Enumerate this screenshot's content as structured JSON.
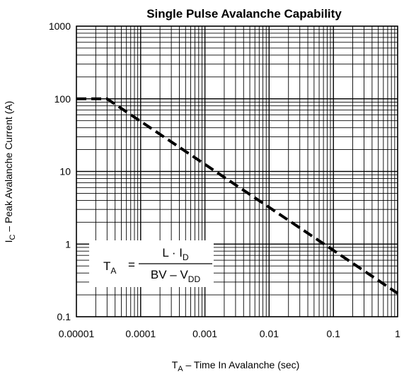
{
  "chart_data": {
    "type": "line",
    "title": "Single Pulse Avalanche Capability",
    "xlabel": {
      "main": "T",
      "sub": "A",
      "rest": " – Time In Avalanche (sec)"
    },
    "ylabel": {
      "main": "I",
      "sub": "C",
      "rest": " – Peak Avalanche Current (A)"
    },
    "x_scale": "log",
    "y_scale": "log",
    "xlim": [
      1e-05,
      1
    ],
    "ylim": [
      0.1,
      1000
    ],
    "grid": true,
    "x_ticks": [
      {
        "value": 1e-05,
        "label": "0.00001"
      },
      {
        "value": 0.0001,
        "label": "0.0001"
      },
      {
        "value": 0.001,
        "label": "0.001"
      },
      {
        "value": 0.01,
        "label": "0.01"
      },
      {
        "value": 0.1,
        "label": "0.1"
      },
      {
        "value": 1,
        "label": "1"
      }
    ],
    "y_ticks": [
      {
        "value": 0.1,
        "label": "0.1"
      },
      {
        "value": 1,
        "label": "1"
      },
      {
        "value": 10,
        "label": "10"
      },
      {
        "value": 100,
        "label": "100"
      },
      {
        "value": 1000,
        "label": "1000"
      }
    ],
    "series": [
      {
        "style": "dashed",
        "color": "#000000",
        "points": [
          {
            "x": 1e-05,
            "y": 100
          },
          {
            "x": 3e-05,
            "y": 100
          },
          {
            "x": 1,
            "y": 0.21
          }
        ]
      }
    ],
    "annotation": {
      "lhs_main": "T",
      "lhs_sub": "A",
      "equals": "=",
      "numerator_main": "L · I",
      "numerator_sub": "D",
      "denominator_main": "BV – V",
      "denominator_sub": "DD"
    }
  }
}
